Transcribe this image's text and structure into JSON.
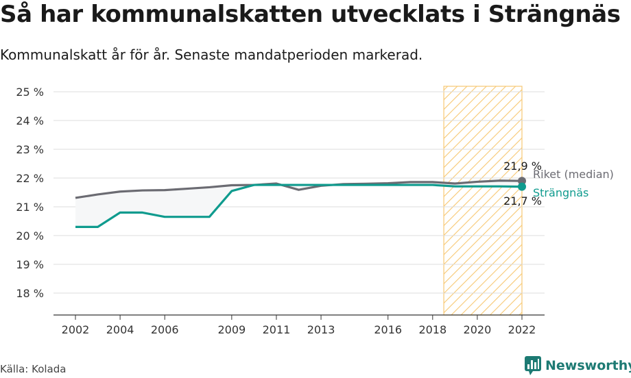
{
  "title": "Så har kommunalskatten utvecklats i Strängnäs",
  "subtitle": "Kommunalskatt år för år. Senaste mandatperioden markerad.",
  "source": "Källa: Kolada",
  "brand": {
    "name": "Newsworthy",
    "icon": "newsworthy-logo-icon"
  },
  "colors": {
    "riket": "#6b6b72",
    "strangnas": "#0f9b8e",
    "highlight": "#f7c873",
    "fill": "#f6f7f8"
  },
  "chart_data": {
    "type": "line",
    "xticks": [
      2002,
      2004,
      2006,
      2009,
      2011,
      2013,
      2016,
      2018,
      2020,
      2022
    ],
    "yticks": [
      18,
      19,
      20,
      21,
      22,
      23,
      24,
      25
    ],
    "ytick_labels": [
      "18 %",
      "19 %",
      "20 %",
      "21 %",
      "22 %",
      "23 %",
      "24 %",
      "25 %"
    ],
    "xlim": [
      2002,
      2022
    ],
    "ylim": [
      17.3,
      25.2
    ],
    "grid": true,
    "highlight_period": [
      2018.5,
      2022
    ],
    "series": [
      {
        "name": "Riket (median)",
        "x": [
          2002,
          2003,
          2004,
          2005,
          2006,
          2007,
          2008,
          2009,
          2010,
          2011,
          2012,
          2013,
          2014,
          2015,
          2016,
          2017,
          2018,
          2019,
          2020,
          2021,
          2022
        ],
        "values": [
          21.31,
          21.43,
          21.53,
          21.57,
          21.58,
          21.63,
          21.68,
          21.75,
          21.76,
          21.81,
          21.59,
          21.73,
          21.79,
          21.8,
          21.82,
          21.86,
          21.86,
          21.81,
          21.87,
          21.91,
          21.9
        ],
        "end_label": "21,9 %"
      },
      {
        "name": "Strängnäs",
        "x": [
          2002,
          2003,
          2004,
          2005,
          2006,
          2007,
          2008,
          2009,
          2010,
          2011,
          2012,
          2013,
          2014,
          2015,
          2016,
          2017,
          2018,
          2019,
          2020,
          2021,
          2022
        ],
        "values": [
          20.3,
          20.3,
          20.8,
          20.8,
          20.65,
          20.65,
          20.65,
          21.55,
          21.76,
          21.76,
          21.76,
          21.76,
          21.76,
          21.76,
          21.76,
          21.76,
          21.76,
          21.71,
          21.71,
          21.71,
          21.7
        ],
        "end_label": "21,7 %"
      }
    ]
  }
}
